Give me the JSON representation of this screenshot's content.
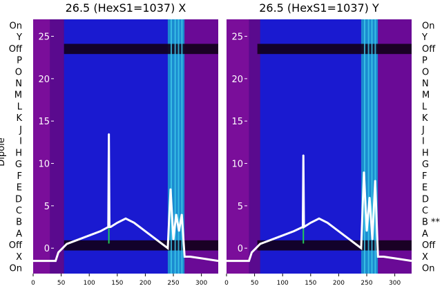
{
  "chart_data": [
    {
      "type": "heatmap",
      "title": "26.5 (HexS1=1037) X",
      "ylabel": "Dipole",
      "xlim": [
        0,
        330
      ],
      "x_ticks": [
        "0",
        "50",
        "100",
        "150",
        "200",
        "250",
        "300"
      ],
      "ylim_overlay": [
        -3,
        27
      ],
      "y_ticks": [
        "0",
        "5",
        "10",
        "15",
        "20",
        "25"
      ],
      "row_labels": [
        "On",
        "Y",
        "Off",
        "P",
        "O",
        "N",
        "M",
        "L",
        "K",
        "J",
        "I",
        "H",
        "G",
        "F",
        "E",
        "D",
        "C",
        "B",
        "A",
        "Off",
        "X",
        "On"
      ],
      "bands": [
        {
          "x": [
            0,
            30
          ],
          "color": "#7a0e9a"
        },
        {
          "x": [
            30,
            55
          ],
          "color": "#5a0a8e"
        },
        {
          "x": [
            55,
            240
          ],
          "color": "#1a1ad0"
        },
        {
          "x": [
            240,
            270
          ],
          "color": "#1b8ad0"
        },
        {
          "x": [
            270,
            330
          ],
          "color": "#6a0a96"
        }
      ],
      "overlay_series": [
        {
          "x": [
            0,
            40,
            45,
            60,
            80,
            100,
            120,
            134,
            135,
            136,
            138,
            150,
            165,
            180,
            200,
            220,
            240,
            245,
            250,
            255,
            260,
            265,
            270,
            280,
            300,
            330
          ],
          "y": [
            -1.5,
            -1.5,
            -0.5,
            0.5,
            1.0,
            1.5,
            2.0,
            2.5,
            13.5,
            2.5,
            2.5,
            3.0,
            3.5,
            3.0,
            2.0,
            1.0,
            0.0,
            7.0,
            1.0,
            4.0,
            2.0,
            4.0,
            -1.0,
            -1.0,
            -1.2,
            -1.5
          ]
        }
      ]
    },
    {
      "type": "heatmap",
      "title": "26.5 (HexS1=1037) Y",
      "xlim": [
        0,
        330
      ],
      "x_ticks": [
        "0",
        "50",
        "100",
        "150",
        "200",
        "250",
        "300"
      ],
      "ylim_overlay": [
        -3,
        27
      ],
      "y_ticks": [
        "0",
        "5",
        "10",
        "15",
        "20",
        "25"
      ],
      "row_labels": [
        "On",
        "Y",
        "Off",
        "P",
        "O",
        "N",
        "M",
        "L",
        "K",
        "J",
        "I",
        "H",
        "G",
        "F",
        "E",
        "D",
        "C",
        "B **",
        "A",
        "Off",
        "X",
        "On"
      ],
      "bands": [
        {
          "x": [
            0,
            40
          ],
          "color": "#7a0e9a"
        },
        {
          "x": [
            40,
            60
          ],
          "color": "#5a0a8e"
        },
        {
          "x": [
            60,
            240
          ],
          "color": "#1a1ad0"
        },
        {
          "x": [
            240,
            270
          ],
          "color": "#1b8ad0"
        },
        {
          "x": [
            270,
            330
          ],
          "color": "#6a0a96"
        }
      ],
      "overlay_series": [
        {
          "x": [
            0,
            40,
            45,
            60,
            80,
            100,
            120,
            136,
            137,
            138,
            150,
            165,
            180,
            200,
            220,
            240,
            245,
            250,
            255,
            260,
            265,
            270,
            280,
            300,
            330
          ],
          "y": [
            -1.5,
            -1.5,
            -0.5,
            0.5,
            1.0,
            1.5,
            2.0,
            2.5,
            11.0,
            2.5,
            3.0,
            3.5,
            3.0,
            2.0,
            1.0,
            0.0,
            9.0,
            2.0,
            6.0,
            1.0,
            8.0,
            -1.0,
            -1.0,
            -1.2,
            -1.5
          ]
        }
      ]
    }
  ]
}
